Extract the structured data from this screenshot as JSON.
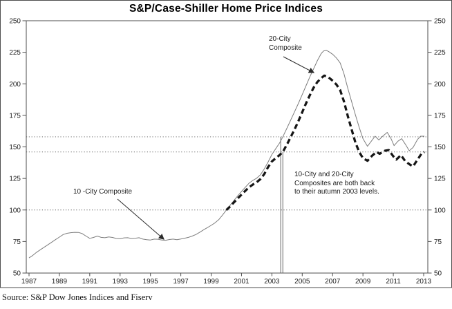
{
  "footer": {
    "source": "Source: S&P Dow Jones Indices and Fiserv"
  },
  "chart_data": {
    "type": "line",
    "title": "S&P/Case-Shiller Home Price Indices",
    "xlabel": "",
    "ylabel": "",
    "xlim": [
      1987,
      2013.3
    ],
    "ylim": [
      50,
      250
    ],
    "y_axis_both_sides": true,
    "grid": false,
    "x_ticks": [
      1987,
      1989,
      1991,
      1993,
      1995,
      1997,
      1999,
      2001,
      2003,
      2005,
      2007,
      2009,
      2011,
      2013
    ],
    "y_ticks": [
      50,
      75,
      100,
      125,
      150,
      175,
      200,
      225,
      250
    ],
    "reference_lines": [
      100,
      146,
      158
    ],
    "vertical_markers": [
      {
        "year": 2003.58,
        "top_value": 158
      },
      {
        "year": 2003.72,
        "top_value": 146
      }
    ],
    "arrows": [
      {
        "from": [
          410,
          82
        ],
        "to": [
          454,
          105
        ]
      },
      {
        "from": [
          170,
          288
        ],
        "to": [
          237,
          346
        ]
      }
    ],
    "annotations": {
      "series20": {
        "lines": [
          "20-City",
          "Composite"
        ]
      },
      "series10": {
        "text": "10 -City Composite"
      },
      "note": {
        "lines": [
          "10-City and 20-City",
          "Composites are both back",
          "to their autumn 2003 levels."
        ]
      }
    },
    "series": [
      {
        "id": "ten-city-line",
        "name": "10-City Composite",
        "color": "#7d7d7d",
        "width": 1,
        "dash": "",
        "points": [
          [
            1987.0,
            62
          ],
          [
            1987.25,
            64
          ],
          [
            1987.5,
            66.5
          ],
          [
            1987.75,
            68.5
          ],
          [
            1988.0,
            70.5
          ],
          [
            1988.25,
            72.5
          ],
          [
            1988.5,
            74.5
          ],
          [
            1988.75,
            76.5
          ],
          [
            1989.0,
            78.5
          ],
          [
            1989.25,
            80.5
          ],
          [
            1989.5,
            81.5
          ],
          [
            1989.75,
            82
          ],
          [
            1990.0,
            82.3
          ],
          [
            1990.25,
            82.2
          ],
          [
            1990.5,
            81.3
          ],
          [
            1990.75,
            79.3
          ],
          [
            1991.0,
            77.5
          ],
          [
            1991.25,
            78.2
          ],
          [
            1991.5,
            79.3
          ],
          [
            1991.75,
            78.3
          ],
          [
            1992.0,
            78
          ],
          [
            1992.25,
            78.6
          ],
          [
            1992.5,
            78.2
          ],
          [
            1992.75,
            77.4
          ],
          [
            1993.0,
            77.2
          ],
          [
            1993.25,
            77.9
          ],
          [
            1993.5,
            78
          ],
          [
            1993.75,
            77.4
          ],
          [
            1994.0,
            77.6
          ],
          [
            1994.25,
            78
          ],
          [
            1994.5,
            76.9
          ],
          [
            1994.75,
            76.4
          ],
          [
            1995.0,
            76.2
          ],
          [
            1995.25,
            76.9
          ],
          [
            1995.5,
            76.8
          ],
          [
            1995.75,
            76.2
          ],
          [
            1996.0,
            76
          ],
          [
            1996.25,
            76.6
          ],
          [
            1996.5,
            76.9
          ],
          [
            1996.75,
            76.4
          ],
          [
            1997.0,
            77
          ],
          [
            1997.25,
            77.6
          ],
          [
            1997.5,
            78.3
          ],
          [
            1997.75,
            79.3
          ],
          [
            1998.0,
            80.6
          ],
          [
            1998.25,
            82.4
          ],
          [
            1998.5,
            84.3
          ],
          [
            1998.75,
            86
          ],
          [
            1999.0,
            87.8
          ],
          [
            1999.25,
            89.8
          ],
          [
            1999.5,
            92.3
          ],
          [
            1999.75,
            96
          ],
          [
            2000.0,
            100
          ],
          [
            2000.25,
            103.7
          ],
          [
            2000.5,
            107.5
          ],
          [
            2000.75,
            111.2
          ],
          [
            2001.0,
            114.7
          ],
          [
            2001.25,
            118
          ],
          [
            2001.5,
            121.3
          ],
          [
            2001.75,
            123.5
          ],
          [
            2002.0,
            125.2
          ],
          [
            2002.25,
            128
          ],
          [
            2002.5,
            132.5
          ],
          [
            2002.75,
            138
          ],
          [
            2003.0,
            144
          ],
          [
            2003.25,
            148.5
          ],
          [
            2003.5,
            153
          ],
          [
            2003.7,
            157.5
          ],
          [
            2004.0,
            165
          ],
          [
            2004.25,
            171.5
          ],
          [
            2004.5,
            178
          ],
          [
            2004.75,
            184.5
          ],
          [
            2005.0,
            191.5
          ],
          [
            2005.25,
            198.5
          ],
          [
            2005.5,
            205.5
          ],
          [
            2005.75,
            212
          ],
          [
            2006.0,
            218.5
          ],
          [
            2006.25,
            224
          ],
          [
            2006.4,
            226
          ],
          [
            2006.6,
            226.5
          ],
          [
            2006.75,
            225.5
          ],
          [
            2007.0,
            223.5
          ],
          [
            2007.25,
            220.5
          ],
          [
            2007.5,
            216.5
          ],
          [
            2007.75,
            208
          ],
          [
            2008.0,
            196.5
          ],
          [
            2008.25,
            186
          ],
          [
            2008.5,
            175.5
          ],
          [
            2008.75,
            165.5
          ],
          [
            2009.0,
            156.5
          ],
          [
            2009.3,
            150.5
          ],
          [
            2009.55,
            154.5
          ],
          [
            2009.8,
            158.5
          ],
          [
            2010.05,
            155.5
          ],
          [
            2010.3,
            158.5
          ],
          [
            2010.6,
            161.5
          ],
          [
            2010.85,
            156.5
          ],
          [
            2011.05,
            151
          ],
          [
            2011.3,
            154.5
          ],
          [
            2011.55,
            156.5
          ],
          [
            2011.8,
            152
          ],
          [
            2012.05,
            147
          ],
          [
            2012.3,
            149.5
          ],
          [
            2012.6,
            156
          ],
          [
            2012.8,
            158.5
          ],
          [
            2013.05,
            158.5
          ]
        ]
      },
      {
        "id": "twenty-city-line",
        "name": "20-City Composite",
        "color": "#161616",
        "width": 3.3,
        "dash": "7.5 4.5",
        "points": [
          [
            2000.0,
            100
          ],
          [
            2000.25,
            102.8
          ],
          [
            2000.5,
            106
          ],
          [
            2000.75,
            109.2
          ],
          [
            2001.0,
            112.2
          ],
          [
            2001.25,
            115.2
          ],
          [
            2001.5,
            118
          ],
          [
            2001.75,
            120.2
          ],
          [
            2002.0,
            122
          ],
          [
            2002.25,
            124.5
          ],
          [
            2002.5,
            128.5
          ],
          [
            2002.75,
            134
          ],
          [
            2003.0,
            138.5
          ],
          [
            2003.25,
            141
          ],
          [
            2003.5,
            143.5
          ],
          [
            2003.72,
            146
          ],
          [
            2004.0,
            152
          ],
          [
            2004.25,
            158
          ],
          [
            2004.5,
            164
          ],
          [
            2004.75,
            170.5
          ],
          [
            2005.0,
            177.5
          ],
          [
            2005.25,
            184.5
          ],
          [
            2005.5,
            191
          ],
          [
            2005.75,
            197
          ],
          [
            2006.0,
            201.5
          ],
          [
            2006.25,
            204.5
          ],
          [
            2006.45,
            206.5
          ],
          [
            2006.7,
            205.5
          ],
          [
            2007.0,
            202.5
          ],
          [
            2007.25,
            199.5
          ],
          [
            2007.5,
            195
          ],
          [
            2007.75,
            186
          ],
          [
            2008.0,
            174.5
          ],
          [
            2008.25,
            164
          ],
          [
            2008.5,
            153.5
          ],
          [
            2008.75,
            146
          ],
          [
            2009.0,
            141
          ],
          [
            2009.3,
            139
          ],
          [
            2009.6,
            143
          ],
          [
            2009.9,
            146
          ],
          [
            2010.1,
            144.5
          ],
          [
            2010.45,
            147
          ],
          [
            2010.7,
            147.5
          ],
          [
            2011.0,
            142.5
          ],
          [
            2011.2,
            140
          ],
          [
            2011.5,
            143.5
          ],
          [
            2011.8,
            138.5
          ],
          [
            2012.1,
            136
          ],
          [
            2012.3,
            134.5
          ],
          [
            2012.6,
            140
          ],
          [
            2012.85,
            144.5
          ],
          [
            2013.05,
            146
          ]
        ]
      }
    ]
  }
}
